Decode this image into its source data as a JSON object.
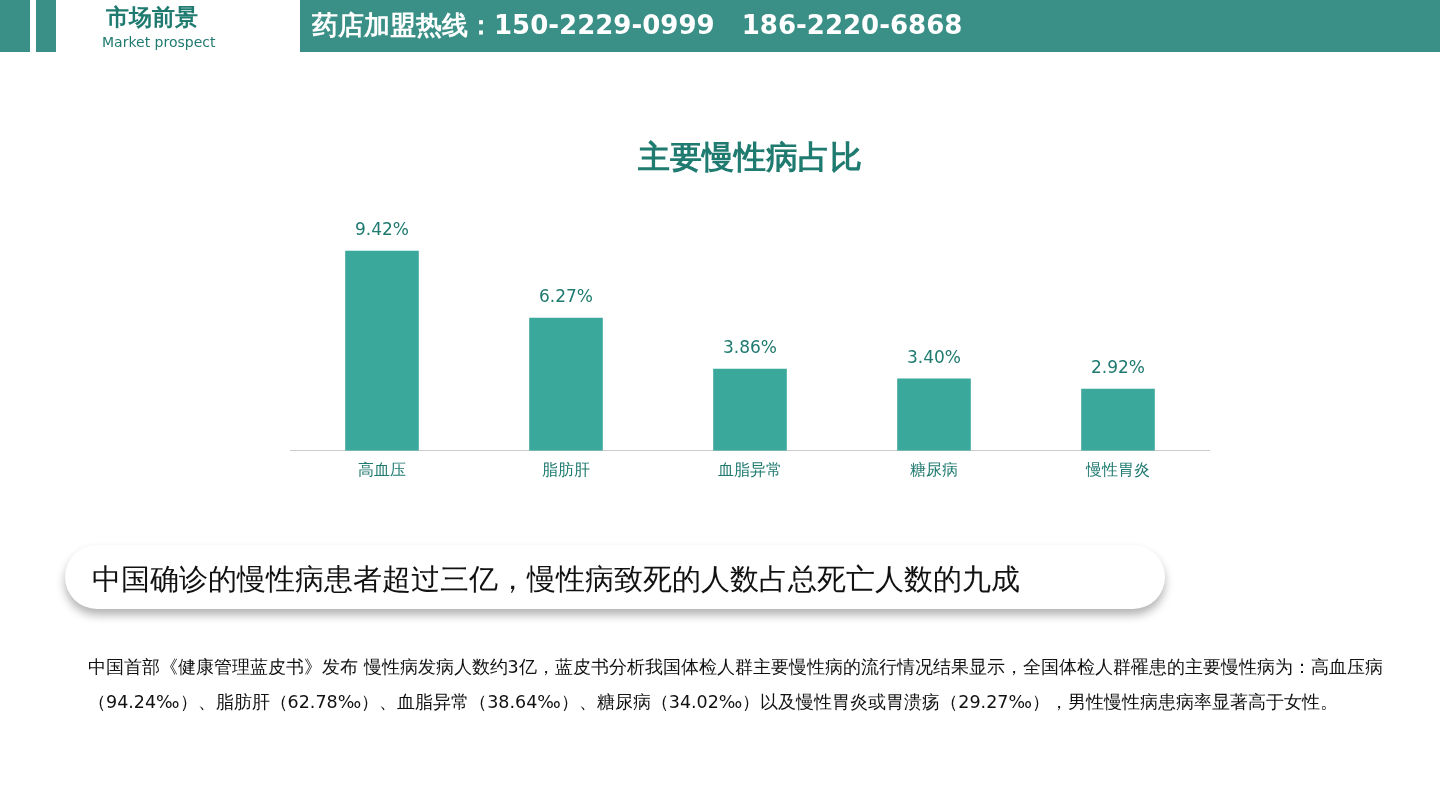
{
  "chart_data": {
    "type": "bar",
    "title": "主要慢性病占比",
    "categories": [
      "高血压",
      "脂肪肝",
      "血脂异常",
      "糖尿病",
      "慢性胃炎"
    ],
    "values": [
      9.42,
      6.27,
      3.86,
      3.4,
      2.92
    ],
    "value_labels": [
      "9.42%",
      "6.27%",
      "3.86%",
      "3.40%",
      "2.92%"
    ],
    "color": "#3aa89b",
    "grid": false,
    "legend": false,
    "tick_labels": "x",
    "annotations": [
      "市场前景",
      "Market prospect",
      "药店加盟热线：150-2229-0999   186-2220-6868",
      "中国确诊的慢性病患者超过三亿，慢性病致死的人数占总死亡人数的九成",
      "中国首部《健康管理蓝皮书》发布 慢性病发病人数约3亿，蓝皮书分析我国体检人群主要慢性病的流行情况结果显示，全国体检人群罹患的主要慢性病为：高血压病（94.24‰）、脂肪肝（62.78‰）、血脂异常（38.64‰）、糖尿病（34.02‰）以及慢性胃炎或胃溃疡（29.27‰），男性慢性病患病率显著高于女性。"
    ]
  }
}
